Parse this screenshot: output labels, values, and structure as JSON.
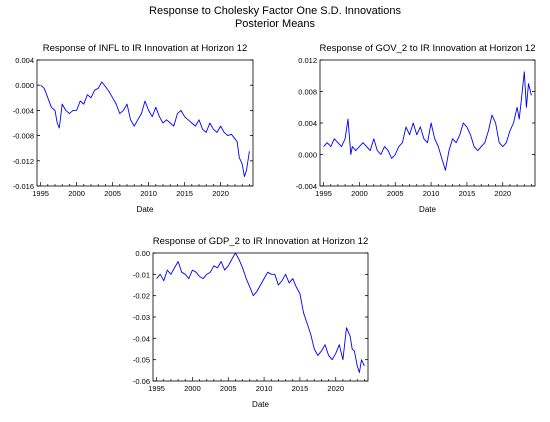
{
  "header": {
    "title": "Response to Cholesky Factor One S.D. Innovations",
    "subtitle": "Posterior Means"
  },
  "colors": {
    "line": "#0000ff",
    "axis": "#000000",
    "background": "#ffffff"
  },
  "chart_data": [
    {
      "type": "line",
      "title": "Response of INFL to IR Innovation at Horizon 12",
      "xlabel": "Date",
      "ylabel": "",
      "grid": false,
      "xlim": [
        1994.5,
        2024.5
      ],
      "ylim": [
        -0.016,
        0.004
      ],
      "xticks": [
        1995,
        2000,
        2005,
        2010,
        2015,
        2020
      ],
      "yticks": [
        -0.016,
        -0.012,
        -0.008,
        -0.004,
        0.0,
        0.004
      ],
      "ytick_labels": [
        "-0.016",
        "-0.012",
        "-0.008",
        "-0.004",
        "0.000",
        "0.004"
      ],
      "series": [
        {
          "x": [
            1995.0,
            1995.5,
            1996.0,
            1996.5,
            1997.0,
            1997.3,
            1997.6,
            1998.0,
            1998.5,
            1999.0,
            1999.5,
            2000.0,
            2000.5,
            2001.0,
            2001.5,
            2002.0,
            2002.5,
            2003.0,
            2003.5,
            2004.0,
            2004.5,
            2005.0,
            2005.5,
            2006.0,
            2006.5,
            2007.0,
            2007.5,
            2008.0,
            2008.5,
            2009.0,
            2009.5,
            2010.0,
            2010.5,
            2011.0,
            2011.5,
            2012.0,
            2012.5,
            2013.0,
            2013.5,
            2014.0,
            2014.5,
            2015.0,
            2015.5,
            2016.0,
            2016.5,
            2017.0,
            2017.5,
            2018.0,
            2018.5,
            2019.0,
            2019.5,
            2020.0,
            2020.5,
            2021.0,
            2021.5,
            2022.0,
            2022.3,
            2022.6,
            2023.0,
            2023.3,
            2023.6,
            2024.0
          ],
          "y": [
            0.0,
            -0.0005,
            -0.002,
            -0.0035,
            -0.004,
            -0.006,
            -0.0068,
            -0.003,
            -0.004,
            -0.0045,
            -0.004,
            -0.004,
            -0.0025,
            -0.003,
            -0.0015,
            -0.002,
            -0.0008,
            -0.0005,
            0.0005,
            -0.0002,
            -0.001,
            -0.002,
            -0.003,
            -0.0045,
            -0.004,
            -0.003,
            -0.0055,
            -0.0065,
            -0.0055,
            -0.0045,
            -0.0025,
            -0.004,
            -0.005,
            -0.0035,
            -0.005,
            -0.006,
            -0.0055,
            -0.006,
            -0.0065,
            -0.0045,
            -0.004,
            -0.005,
            -0.0055,
            -0.006,
            -0.0065,
            -0.0055,
            -0.007,
            -0.0075,
            -0.006,
            -0.007,
            -0.0075,
            -0.0065,
            -0.0075,
            -0.008,
            -0.0078,
            -0.0085,
            -0.009,
            -0.0115,
            -0.0125,
            -0.0145,
            -0.0135,
            -0.0105
          ]
        }
      ]
    },
    {
      "type": "line",
      "title": "Response of GOV_2 to IR Innovation at Horizon 12",
      "xlabel": "Date",
      "ylabel": "",
      "grid": false,
      "xlim": [
        1994.5,
        2024.5
      ],
      "ylim": [
        -0.004,
        0.012
      ],
      "xticks": [
        1995,
        2000,
        2005,
        2010,
        2015,
        2020
      ],
      "yticks": [
        -0.004,
        0.0,
        0.004,
        0.008,
        0.012
      ],
      "ytick_labels": [
        "-0.004",
        "0.000",
        "0.004",
        "0.008",
        "0.012"
      ],
      "series": [
        {
          "x": [
            1995.0,
            1995.5,
            1996.0,
            1996.5,
            1997.0,
            1997.5,
            1998.0,
            1998.4,
            1998.8,
            1999.0,
            1999.5,
            2000.0,
            2000.5,
            2001.0,
            2001.5,
            2002.0,
            2002.5,
            2003.0,
            2003.5,
            2004.0,
            2004.5,
            2005.0,
            2005.5,
            2006.0,
            2006.5,
            2007.0,
            2007.5,
            2008.0,
            2008.5,
            2009.0,
            2009.5,
            2010.0,
            2010.5,
            2011.0,
            2011.5,
            2012.0,
            2012.5,
            2013.0,
            2013.5,
            2014.0,
            2014.5,
            2015.0,
            2015.5,
            2016.0,
            2016.5,
            2017.0,
            2017.5,
            2018.0,
            2018.5,
            2019.0,
            2019.5,
            2020.0,
            2020.5,
            2021.0,
            2021.5,
            2022.0,
            2022.3,
            2022.6,
            2023.0,
            2023.3,
            2023.6,
            2024.0
          ],
          "y": [
            0.001,
            0.0015,
            0.001,
            0.002,
            0.0015,
            0.001,
            0.002,
            0.0045,
            0.0,
            0.001,
            0.0005,
            0.001,
            0.0015,
            0.001,
            0.0005,
            0.002,
            0.0005,
            0.0,
            0.001,
            0.0005,
            -0.0005,
            0.0,
            0.001,
            0.0015,
            0.0035,
            0.0025,
            0.004,
            0.0025,
            0.0035,
            0.002,
            0.0015,
            0.004,
            0.002,
            0.001,
            -0.0005,
            -0.002,
            0.0005,
            0.002,
            0.0015,
            0.0025,
            0.004,
            0.0035,
            0.0025,
            0.001,
            0.0005,
            0.001,
            0.0015,
            0.003,
            0.005,
            0.004,
            0.0015,
            0.001,
            0.0015,
            0.003,
            0.004,
            0.006,
            0.0045,
            0.007,
            0.0105,
            0.006,
            0.009,
            0.0075
          ]
        }
      ]
    },
    {
      "type": "line",
      "title": "Response of GDP_2 to IR Innovation at Horizon 12",
      "xlabel": "Date",
      "ylabel": "",
      "grid": false,
      "xlim": [
        1994.5,
        2024.5
      ],
      "ylim": [
        -0.06,
        0.0
      ],
      "xticks": [
        1995,
        2000,
        2005,
        2010,
        2015,
        2020
      ],
      "yticks": [
        -0.06,
        -0.05,
        -0.04,
        -0.03,
        -0.02,
        -0.01,
        0.0
      ],
      "ytick_labels": [
        "-0.06",
        "-0.05",
        "-0.04",
        "-0.03",
        "-0.02",
        "-0.01",
        "0.00"
      ],
      "series": [
        {
          "x": [
            1995.0,
            1995.5,
            1996.0,
            1996.5,
            1997.0,
            1997.5,
            1998.0,
            1998.5,
            1999.0,
            1999.5,
            2000.0,
            2000.5,
            2001.0,
            2001.5,
            2002.0,
            2002.5,
            2003.0,
            2003.5,
            2004.0,
            2004.5,
            2005.0,
            2005.5,
            2006.0,
            2006.5,
            2007.0,
            2007.5,
            2008.0,
            2008.5,
            2009.0,
            2009.5,
            2010.0,
            2010.5,
            2011.0,
            2011.5,
            2012.0,
            2012.5,
            2013.0,
            2013.5,
            2014.0,
            2014.5,
            2015.0,
            2015.5,
            2016.0,
            2016.5,
            2017.0,
            2017.5,
            2018.0,
            2018.5,
            2019.0,
            2019.5,
            2020.0,
            2020.5,
            2021.0,
            2021.5,
            2022.0,
            2022.3,
            2022.6,
            2023.0,
            2023.3,
            2023.6,
            2024.0
          ],
          "y": [
            -0.012,
            -0.01,
            -0.013,
            -0.008,
            -0.01,
            -0.007,
            -0.004,
            -0.009,
            -0.01,
            -0.012,
            -0.008,
            -0.009,
            -0.011,
            -0.012,
            -0.01,
            -0.009,
            -0.006,
            -0.007,
            -0.004,
            -0.008,
            -0.006,
            -0.003,
            0.0,
            -0.003,
            -0.007,
            -0.012,
            -0.016,
            -0.02,
            -0.018,
            -0.015,
            -0.012,
            -0.009,
            -0.01,
            -0.01,
            -0.015,
            -0.013,
            -0.01,
            -0.014,
            -0.012,
            -0.016,
            -0.019,
            -0.028,
            -0.033,
            -0.038,
            -0.045,
            -0.048,
            -0.046,
            -0.043,
            -0.048,
            -0.05,
            -0.047,
            -0.043,
            -0.05,
            -0.035,
            -0.039,
            -0.045,
            -0.046,
            -0.053,
            -0.056,
            -0.05,
            -0.053
          ]
        }
      ]
    }
  ]
}
